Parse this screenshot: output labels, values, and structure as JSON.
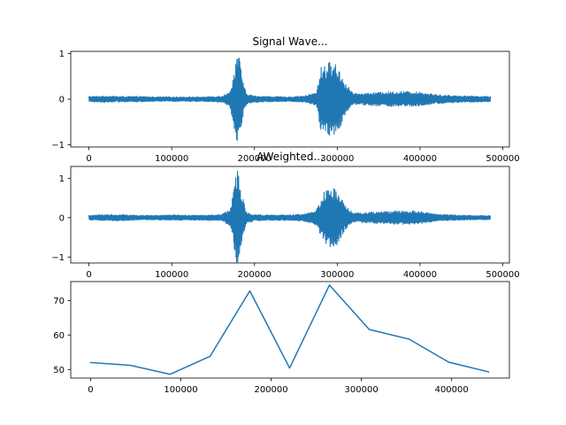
{
  "chart_data": [
    {
      "type": "line",
      "title": "Signal Wave...",
      "xlabel": "",
      "ylabel": "",
      "xlim": [
        -22000,
        508000
      ],
      "ylim": [
        -1.05,
        1.05
      ],
      "xticks": [
        0,
        100000,
        200000,
        300000,
        400000,
        500000
      ],
      "xtick_labels": [
        "0",
        "100000",
        "200000",
        "300000",
        "400000",
        "500000"
      ],
      "yticks": [
        1,
        0,
        -1
      ],
      "ytick_labels": [
        "1",
        "0",
        "−1"
      ],
      "grid": false,
      "series": [
        {
          "color": "#1f77b4",
          "envelope_points": [
            [
              0,
              0.06
            ],
            [
              20000,
              0.07
            ],
            [
              40000,
              0.06
            ],
            [
              60000,
              0.06
            ],
            [
              80000,
              0.05
            ],
            [
              100000,
              0.05
            ],
            [
              120000,
              0.05
            ],
            [
              140000,
              0.05
            ],
            [
              160000,
              0.07
            ],
            [
              170000,
              0.15
            ],
            [
              175000,
              0.55
            ],
            [
              178000,
              0.98
            ],
            [
              181000,
              1.0
            ],
            [
              185000,
              0.5
            ],
            [
              190000,
              0.12
            ],
            [
              200000,
              0.07
            ],
            [
              220000,
              0.06
            ],
            [
              240000,
              0.05
            ],
            [
              260000,
              0.07
            ],
            [
              275000,
              0.15
            ],
            [
              280000,
              0.7
            ],
            [
              290000,
              0.82
            ],
            [
              300000,
              0.75
            ],
            [
              310000,
              0.35
            ],
            [
              320000,
              0.12
            ],
            [
              340000,
              0.14
            ],
            [
              360000,
              0.16
            ],
            [
              380000,
              0.17
            ],
            [
              400000,
              0.16
            ],
            [
              420000,
              0.1
            ],
            [
              440000,
              0.08
            ],
            [
              460000,
              0.07
            ],
            [
              485000,
              0.06
            ]
          ]
        }
      ]
    },
    {
      "type": "line",
      "title": "AWeighted...",
      "xlabel": "",
      "ylabel": "",
      "xlim": [
        -22000,
        508000
      ],
      "ylim": [
        -1.15,
        1.3
      ],
      "xticks": [
        0,
        100000,
        200000,
        300000,
        400000,
        500000
      ],
      "xtick_labels": [
        "0",
        "100000",
        "200000",
        "300000",
        "400000",
        "500000"
      ],
      "yticks": [
        1,
        0,
        -1
      ],
      "ytick_labels": [
        "1",
        "0",
        "−1"
      ],
      "grid": false,
      "series": [
        {
          "color": "#1f77b4",
          "envelope_points": [
            [
              0,
              0.06
            ],
            [
              20000,
              0.08
            ],
            [
              40000,
              0.08
            ],
            [
              60000,
              0.06
            ],
            [
              80000,
              0.06
            ],
            [
              100000,
              0.07
            ],
            [
              120000,
              0.06
            ],
            [
              140000,
              0.07
            ],
            [
              160000,
              0.08
            ],
            [
              170000,
              0.2
            ],
            [
              175000,
              0.7
            ],
            [
              178000,
              1.25
            ],
            [
              181000,
              1.15
            ],
            [
              185000,
              0.6
            ],
            [
              190000,
              0.15
            ],
            [
              200000,
              0.08
            ],
            [
              220000,
              0.07
            ],
            [
              240000,
              0.07
            ],
            [
              260000,
              0.09
            ],
            [
              275000,
              0.2
            ],
            [
              282000,
              0.6
            ],
            [
              290000,
              0.8
            ],
            [
              300000,
              0.7
            ],
            [
              310000,
              0.3
            ],
            [
              320000,
              0.12
            ],
            [
              340000,
              0.14
            ],
            [
              360000,
              0.16
            ],
            [
              380000,
              0.18
            ],
            [
              400000,
              0.16
            ],
            [
              420000,
              0.09
            ],
            [
              440000,
              0.07
            ],
            [
              460000,
              0.06
            ],
            [
              485000,
              0.05
            ]
          ]
        }
      ]
    },
    {
      "type": "line",
      "title": "",
      "xlabel": "",
      "ylabel": "",
      "xlim": [
        -22000,
        464000
      ],
      "ylim": [
        47.5,
        75.5
      ],
      "xticks": [
        0,
        100000,
        200000,
        300000,
        400000
      ],
      "xtick_labels": [
        "0",
        "100000",
        "200000",
        "300000",
        "400000"
      ],
      "yticks": [
        70,
        60,
        50
      ],
      "ytick_labels": [
        "70",
        "60",
        "50"
      ],
      "grid": false,
      "series": [
        {
          "color": "#1f77b4",
          "x": [
            0,
            44100,
            88200,
            132300,
            176400,
            220500,
            264600,
            308700,
            352800,
            396900,
            441000
          ],
          "y": [
            52.0,
            51.2,
            48.6,
            53.8,
            72.8,
            50.4,
            74.5,
            61.6,
            58.8,
            52.1,
            49.3
          ]
        }
      ]
    }
  ]
}
